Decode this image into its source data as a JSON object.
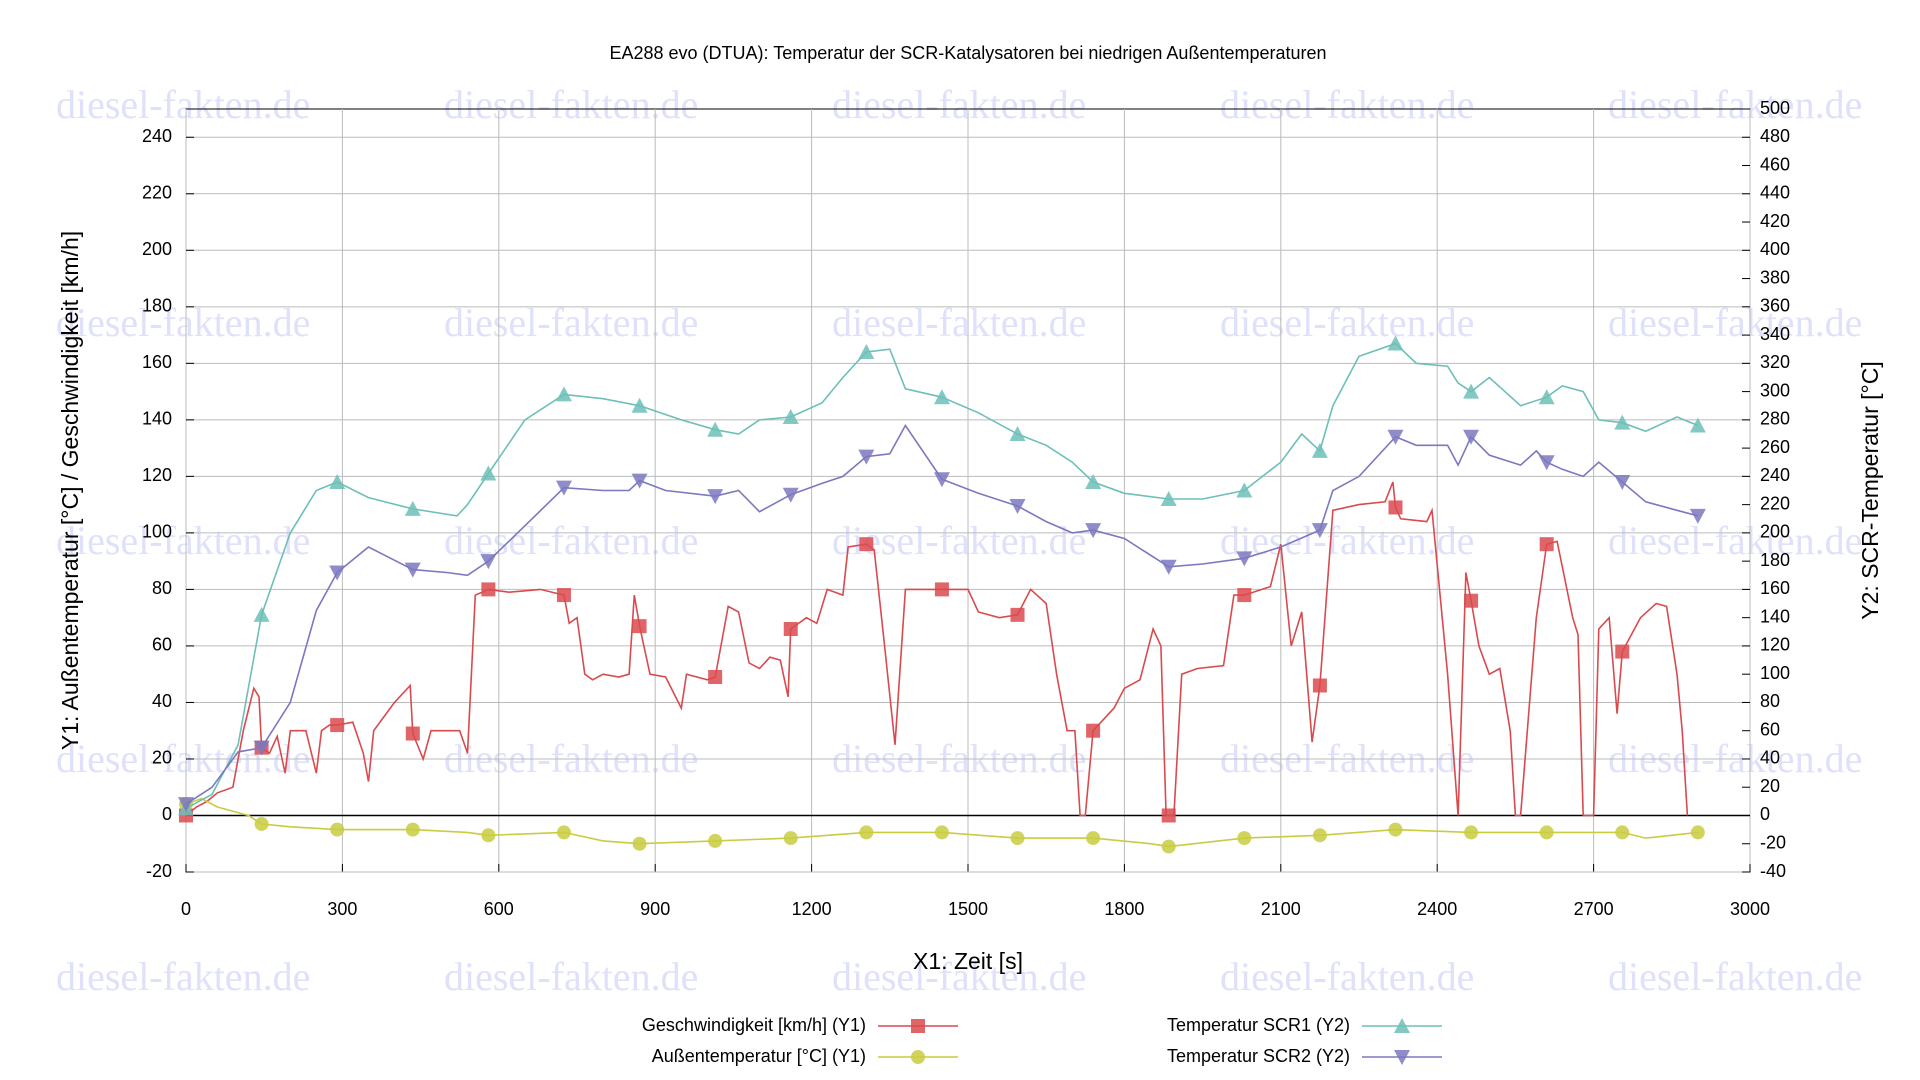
{
  "chart_data": {
    "type": "line",
    "title": "EA288 evo (DTUA): Temperatur der SCR-Katalysatoren bei niedrigen Außentemperaturen",
    "watermark": "diesel-fakten.de",
    "xlabel": "X1: Zeit [s]",
    "ylabel": "Y1: Außentemperatur [°C] / Geschwindigkeit [km/h]",
    "y2label": "Y2: SCR-Temperatur [°C]",
    "xlim": [
      0,
      3000
    ],
    "xticks": [
      0,
      300,
      600,
      900,
      1200,
      1500,
      1800,
      2100,
      2400,
      2700,
      3000
    ],
    "ylim": [
      -20,
      250
    ],
    "yticks": [
      -20,
      0,
      20,
      40,
      60,
      80,
      100,
      120,
      140,
      160,
      180,
      200,
      220,
      240
    ],
    "y2lim": [
      -40,
      500
    ],
    "y2ticks": [
      -40,
      -20,
      0,
      20,
      40,
      60,
      80,
      100,
      120,
      140,
      160,
      180,
      200,
      220,
      240,
      260,
      280,
      300,
      320,
      340,
      360,
      380,
      400,
      420,
      440,
      460,
      480,
      500
    ],
    "grid": true,
    "series": [
      {
        "name": "Geschwindigkeit [km/h] (Y1)",
        "color": "#d94a4f",
        "marker": "square",
        "x": [
          0,
          20,
          40,
          60,
          90,
          110,
          130,
          140,
          145,
          160,
          175,
          190,
          200,
          230,
          250,
          260,
          275,
          290,
          320,
          340,
          350,
          360,
          400,
          430,
          435,
          455,
          470,
          500,
          525,
          540,
          555,
          580,
          620,
          680,
          725,
          735,
          750,
          765,
          780,
          800,
          830,
          850,
          860,
          870,
          890,
          920,
          950,
          960,
          1000,
          1015,
          1040,
          1060,
          1080,
          1100,
          1120,
          1140,
          1155,
          1160,
          1190,
          1210,
          1230,
          1260,
          1270,
          1305,
          1320,
          1340,
          1360,
          1380,
          1420,
          1450,
          1500,
          1520,
          1560,
          1595,
          1620,
          1650,
          1670,
          1690,
          1705,
          1715,
          1725,
          1740,
          1780,
          1800,
          1830,
          1855,
          1870,
          1880,
          1885,
          1895,
          1910,
          1940,
          1990,
          2010,
          2030,
          2080,
          2100,
          2120,
          2140,
          2160,
          2175,
          2200,
          2250,
          2300,
          2315,
          2320,
          2330,
          2380,
          2390,
          2420,
          2440,
          2455,
          2465,
          2480,
          2500,
          2520,
          2540,
          2550,
          2560,
          2590,
          2610,
          2630,
          2660,
          2670,
          2680,
          2700,
          2710,
          2730,
          2745,
          2755,
          2790,
          2820,
          2840,
          2860,
          2870,
          2880
        ],
        "values": [
          0,
          3,
          5,
          8,
          10,
          30,
          45,
          42,
          24,
          22,
          28,
          15,
          30,
          30,
          15,
          30,
          32,
          32,
          33,
          22,
          12,
          30,
          40,
          46,
          29,
          20,
          30,
          30,
          30,
          22,
          78,
          80,
          79,
          80,
          78,
          68,
          70,
          50,
          48,
          50,
          49,
          50,
          78,
          67,
          50,
          49,
          38,
          50,
          48,
          49,
          74,
          72,
          54,
          52,
          56,
          55,
          42,
          66,
          70,
          68,
          80,
          78,
          95,
          96,
          94,
          60,
          25,
          80,
          80,
          80,
          80,
          72,
          70,
          71,
          80,
          75,
          50,
          30,
          30,
          0,
          0,
          30,
          38,
          45,
          48,
          66,
          60,
          0,
          0,
          0,
          50,
          52,
          53,
          78,
          78,
          81,
          96,
          60,
          72,
          26,
          46,
          108,
          110,
          111,
          118,
          109,
          105,
          104,
          108,
          50,
          0,
          86,
          76,
          60,
          50,
          52,
          30,
          0,
          0,
          70,
          96,
          97,
          70,
          64,
          0,
          0,
          66,
          70,
          36,
          58,
          70,
          75,
          74,
          50,
          30,
          0
        ]
      },
      {
        "name": "Außentemperatur [°C] (Y1)",
        "color": "#c9cc3f",
        "marker": "circle",
        "x": [
          0,
          30,
          60,
          120,
          145,
          200,
          290,
          435,
          540,
          580,
          725,
          800,
          870,
          1015,
          1160,
          1305,
          1450,
          1595,
          1740,
          1850,
          1885,
          2030,
          2175,
          2320,
          2465,
          2610,
          2755,
          2800,
          2900
        ],
        "values": [
          4,
          6,
          3,
          0,
          -3,
          -4,
          -5,
          -5,
          -6,
          -7,
          -6,
          -9,
          -10,
          -9,
          -8,
          -6,
          -6,
          -8,
          -8,
          -10,
          -11,
          -8,
          -7,
          -5,
          -6,
          -6,
          -6,
          -8,
          -6
        ]
      },
      {
        "name": "Temperatur SCR1 (Y2)",
        "color": "#6dbfb8",
        "marker": "triangle-up",
        "axis": "y2",
        "x": [
          0,
          50,
          100,
          145,
          200,
          250,
          290,
          350,
          435,
          520,
          540,
          580,
          650,
          725,
          800,
          870,
          950,
          1015,
          1060,
          1100,
          1160,
          1220,
          1260,
          1305,
          1350,
          1380,
          1450,
          1520,
          1595,
          1650,
          1700,
          1740,
          1800,
          1885,
          1950,
          2030,
          2100,
          2140,
          2175,
          2200,
          2250,
          2320,
          2360,
          2420,
          2440,
          2465,
          2500,
          2560,
          2610,
          2640,
          2680,
          2710,
          2755,
          2800,
          2860,
          2900
        ],
        "values": [
          5,
          15,
          50,
          142,
          200,
          230,
          236,
          225,
          217,
          212,
          220,
          242,
          280,
          298,
          295,
          290,
          280,
          273,
          270,
          280,
          282,
          292,
          310,
          328,
          330,
          302,
          296,
          285,
          270,
          262,
          250,
          236,
          228,
          224,
          224,
          230,
          250,
          270,
          258,
          290,
          325,
          334,
          320,
          318,
          306,
          300,
          310,
          290,
          296,
          304,
          300,
          280,
          278,
          272,
          282,
          276
        ]
      },
      {
        "name": "Temperatur SCR2 (Y2)",
        "color": "#7b78bf",
        "marker": "triangle-down",
        "axis": "y2",
        "x": [
          0,
          50,
          100,
          145,
          200,
          250,
          290,
          350,
          435,
          500,
          540,
          580,
          650,
          725,
          800,
          850,
          870,
          920,
          1015,
          1060,
          1100,
          1160,
          1220,
          1260,
          1305,
          1350,
          1380,
          1450,
          1520,
          1595,
          1650,
          1700,
          1740,
          1800,
          1885,
          1950,
          2030,
          2100,
          2175,
          2200,
          2250,
          2320,
          2360,
          2420,
          2440,
          2465,
          2500,
          2560,
          2590,
          2610,
          2640,
          2680,
          2710,
          2755,
          2800,
          2860,
          2900
        ],
        "values": [
          8,
          20,
          45,
          48,
          80,
          145,
          172,
          190,
          174,
          172,
          170,
          180,
          205,
          232,
          230,
          230,
          237,
          230,
          226,
          230,
          215,
          227,
          235,
          240,
          254,
          256,
          276,
          238,
          228,
          219,
          208,
          200,
          202,
          196,
          176,
          178,
          182,
          190,
          202,
          230,
          240,
          268,
          262,
          262,
          248,
          268,
          255,
          248,
          258,
          250,
          245,
          240,
          250,
          236,
          222,
          216,
          212
        ]
      }
    ]
  }
}
